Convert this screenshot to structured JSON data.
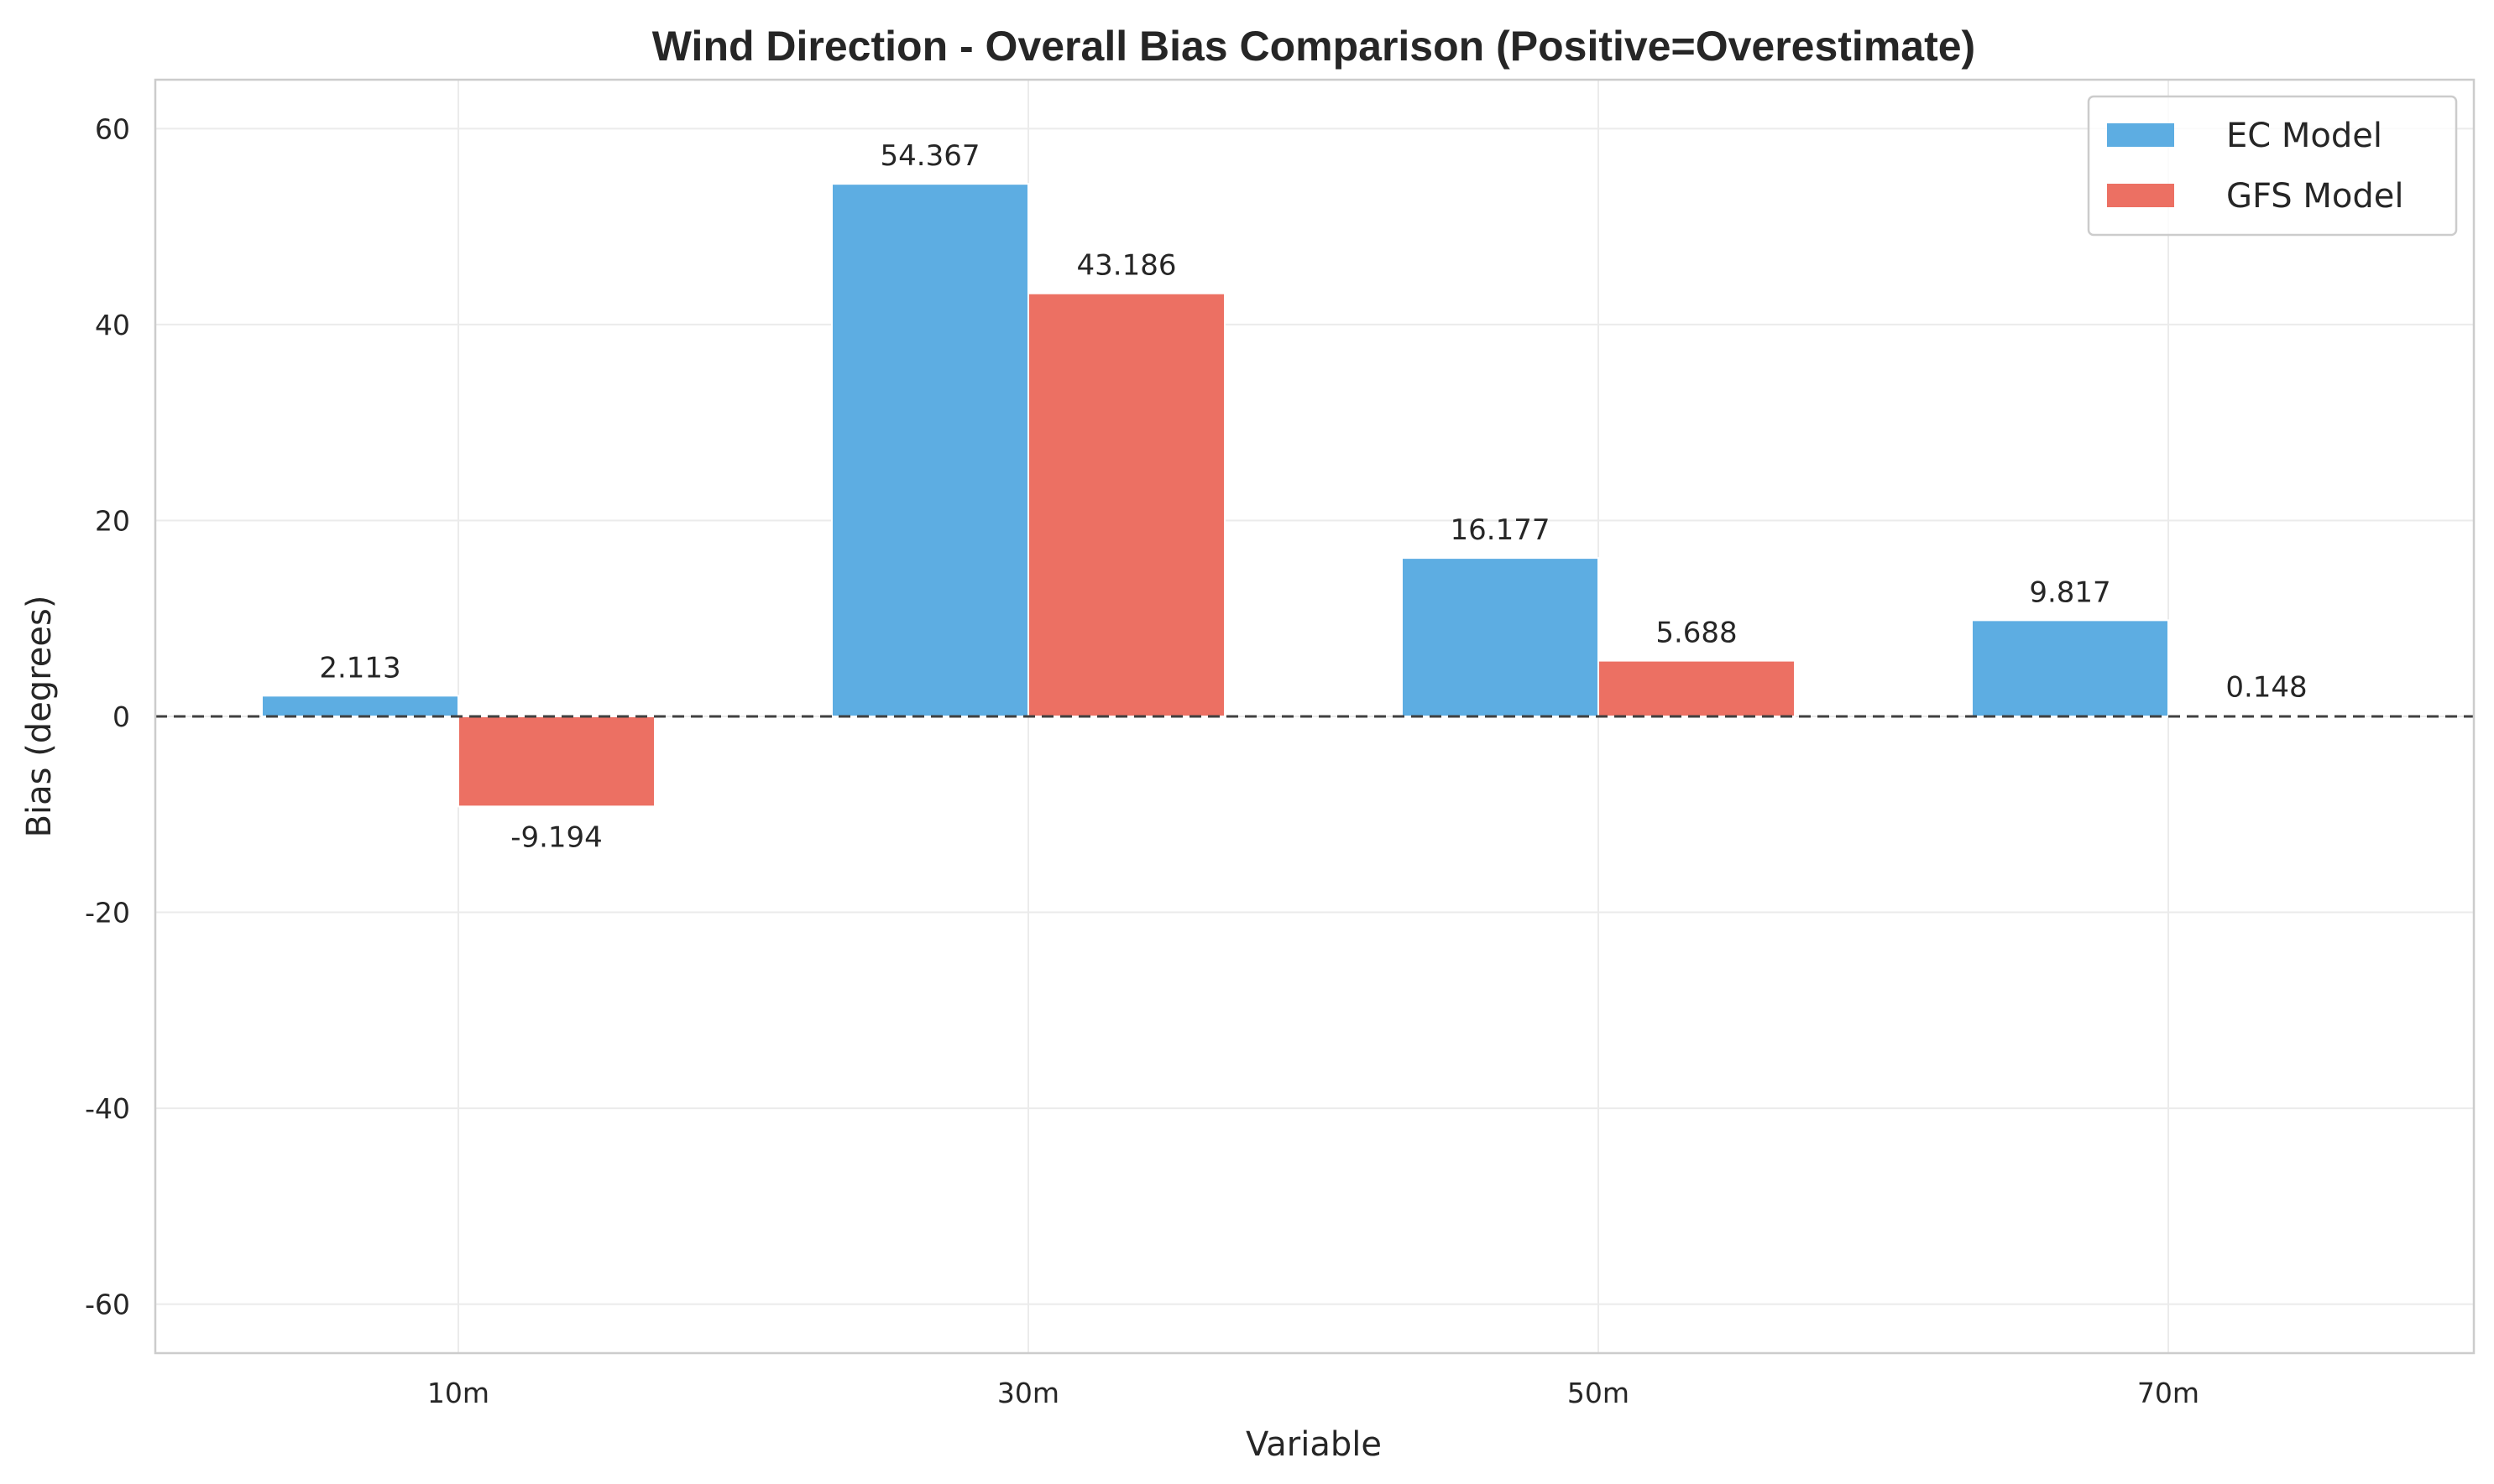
{
  "chart_data": {
    "type": "bar",
    "title": "Wind Direction - Overall Bias Comparison (Positive=Overestimate)",
    "xlabel": "Variable",
    "ylabel": "Bias (degrees)",
    "categories": [
      "10m",
      "30m",
      "50m",
      "70m"
    ],
    "series": [
      {
        "name": "EC Model",
        "color": "#5dade2",
        "values": [
          2.113,
          54.367,
          16.177,
          9.817
        ],
        "labels": [
          "2.113",
          "54.367",
          "16.177",
          "9.817"
        ]
      },
      {
        "name": "GFS Model",
        "color": "#ec7063",
        "values": [
          -9.194,
          43.186,
          5.688,
          0.148
        ],
        "labels": [
          "-9.194",
          "43.186",
          "5.688",
          "0.148"
        ]
      }
    ],
    "ylim": [
      -65,
      65
    ],
    "yticks": [
      -60,
      -40,
      -20,
      0,
      20,
      40,
      60
    ],
    "ytick_labels": [
      "-60",
      "-40",
      "-20",
      "0",
      "20",
      "40",
      "60"
    ],
    "zero_line": "dashed",
    "grid": true,
    "legend": "top-right"
  }
}
